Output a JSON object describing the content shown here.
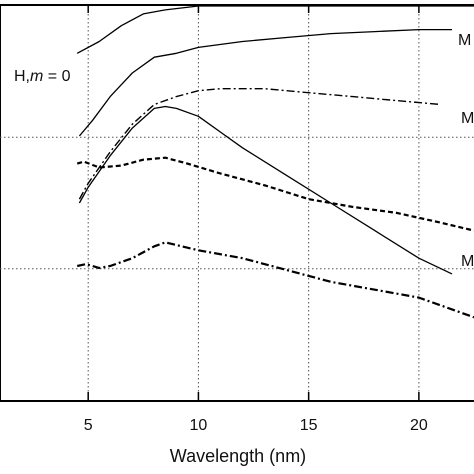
{
  "chart_data": {
    "type": "line",
    "xlabel": "Wavelength (nm)",
    "xlim": [
      1,
      22.5
    ],
    "ylim": [
      0,
      1
    ],
    "x_ticks": [
      5,
      10,
      15,
      20
    ],
    "x_tick_labels": [
      "5",
      "10",
      "15",
      "20"
    ],
    "y_ticks": [
      0.333,
      0.667
    ],
    "grid": true,
    "annotations": [
      {
        "text": "H,",
        "italic": false
      },
      {
        "text": "m",
        "italic": true
      },
      {
        "text": " = 0",
        "italic": false
      },
      {
        "text": "M",
        "italic": false
      },
      {
        "text": "M",
        "italic": false
      },
      {
        "text": "M",
        "italic": false
      }
    ],
    "series": [
      {
        "style": "solid",
        "x": [
          4.5,
          5.5,
          6.5,
          7.5,
          8.5,
          10,
          12,
          15,
          18,
          21,
          22.5
        ],
        "y": [
          0.88,
          0.91,
          0.95,
          0.98,
          0.99,
          1.0,
          1.0,
          1.0,
          1.0,
          1.0,
          1.0
        ]
      },
      {
        "style": "solid",
        "x": [
          4.6,
          5.2,
          6,
          7,
          8,
          9,
          10,
          12,
          14,
          16,
          18,
          20,
          21.5
        ],
        "y": [
          0.67,
          0.71,
          0.77,
          0.83,
          0.87,
          0.88,
          0.895,
          0.91,
          0.92,
          0.93,
          0.935,
          0.94,
          0.94
        ]
      },
      {
        "style": "dashdot",
        "x": [
          4.6,
          5,
          6,
          7,
          8,
          9,
          10,
          11,
          12,
          13,
          15,
          17,
          19,
          21
        ],
        "y": [
          0.51,
          0.55,
          0.63,
          0.7,
          0.75,
          0.77,
          0.785,
          0.79,
          0.79,
          0.79,
          0.78,
          0.77,
          0.76,
          0.75
        ]
      },
      {
        "style": "solid",
        "x": [
          4.6,
          5,
          6,
          7,
          8,
          8.5,
          9,
          10,
          11,
          12,
          14,
          16,
          18,
          20,
          21.5
        ],
        "y": [
          0.5,
          0.54,
          0.62,
          0.69,
          0.74,
          0.745,
          0.74,
          0.72,
          0.68,
          0.64,
          0.57,
          0.5,
          0.43,
          0.36,
          0.32
        ]
      },
      {
        "style": "dashed",
        "x": [
          4.5,
          4.8,
          5.5,
          6.5,
          7.5,
          8.5,
          9.5,
          11,
          13,
          15,
          17,
          19,
          21,
          22.5
        ],
        "y": [
          0.6,
          0.605,
          0.59,
          0.595,
          0.61,
          0.615,
          0.6,
          0.575,
          0.545,
          0.51,
          0.49,
          0.475,
          0.45,
          0.43
        ]
      },
      {
        "style": "dashdot",
        "x": [
          4.5,
          4.9,
          5.5,
          6,
          7,
          8,
          8.5,
          10,
          12,
          14,
          16,
          18,
          20,
          22.5
        ],
        "y": [
          0.34,
          0.345,
          0.335,
          0.34,
          0.36,
          0.39,
          0.4,
          0.38,
          0.36,
          0.33,
          0.3,
          0.28,
          0.26,
          0.21
        ]
      }
    ]
  }
}
